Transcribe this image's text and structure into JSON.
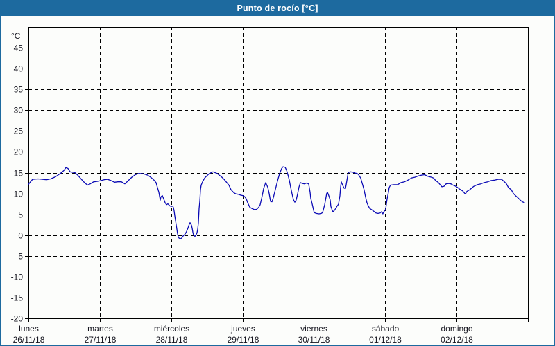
{
  "window": {
    "title": "Punto de rocío [°C]"
  },
  "colors": {
    "titlebar_bg": "#1d6a9f",
    "titlebar_text": "#ffffff",
    "outer_border": "#1d6a9f",
    "plot_background": "#fcfdfb",
    "grid": "#000000",
    "axis": "#000000",
    "tick_label": "#14141e",
    "line": "#0a0ab5"
  },
  "chart_data": {
    "type": "line",
    "title": "Punto de rocío [°C]",
    "y_unit_label": "°C",
    "ylim": [
      -20,
      50
    ],
    "yticks": [
      45,
      40,
      35,
      30,
      25,
      20,
      15,
      10,
      5,
      0,
      -5,
      -10,
      -15,
      -20
    ],
    "grid": "dashed",
    "legend_position": "none",
    "xlim_days": [
      0,
      7
    ],
    "x_days": [
      {
        "name": "lunes",
        "date": "26/11/18"
      },
      {
        "name": "martes",
        "date": "27/11/18"
      },
      {
        "name": "miércoles",
        "date": "28/11/18"
      },
      {
        "name": "jueves",
        "date": "29/11/18"
      },
      {
        "name": "viernes",
        "date": "30/11/18"
      },
      {
        "name": "sábado",
        "date": "01/12/18"
      },
      {
        "name": "domingo",
        "date": "02/12/18"
      }
    ],
    "series": [
      {
        "name": "Punto de rocío",
        "color": "#0a0ab5",
        "points": [
          [
            0.0,
            12.2
          ],
          [
            0.058,
            13.4
          ],
          [
            0.136,
            13.5
          ],
          [
            0.253,
            13.3
          ],
          [
            0.311,
            13.5
          ],
          [
            0.379,
            14.0
          ],
          [
            0.447,
            14.8
          ],
          [
            0.496,
            15.5
          ],
          [
            0.525,
            16.2
          ],
          [
            0.554,
            16.0
          ],
          [
            0.583,
            15.2
          ],
          [
            0.651,
            15.0
          ],
          [
            0.69,
            14.4
          ],
          [
            0.768,
            12.9
          ],
          [
            0.826,
            12.0
          ],
          [
            0.865,
            12.3
          ],
          [
            0.914,
            12.8
          ],
          [
            0.963,
            12.9
          ],
          [
            1.02,
            13.1
          ],
          [
            1.06,
            13.3
          ],
          [
            1.108,
            13.4
          ],
          [
            1.157,
            13.1
          ],
          [
            1.206,
            12.7
          ],
          [
            1.254,
            12.8
          ],
          [
            1.303,
            12.8
          ],
          [
            1.351,
            12.3
          ],
          [
            1.4,
            13.1
          ],
          [
            1.449,
            13.9
          ],
          [
            1.497,
            14.5
          ],
          [
            1.546,
            14.8
          ],
          [
            1.614,
            14.7
          ],
          [
            1.672,
            14.4
          ],
          [
            1.721,
            13.8
          ],
          [
            1.76,
            13.2
          ],
          [
            1.789,
            12.6
          ],
          [
            1.808,
            11.4
          ],
          [
            1.828,
            10.3
          ],
          [
            1.847,
            8.4
          ],
          [
            1.857,
            9.2
          ],
          [
            1.876,
            9.5
          ],
          [
            1.896,
            8.7
          ],
          [
            1.915,
            7.8
          ],
          [
            1.934,
            7.3
          ],
          [
            1.954,
            7.5
          ],
          [
            1.983,
            7.0
          ],
          [
            2.003,
            6.9
          ],
          [
            2.022,
            7.0
          ],
          [
            2.032,
            6.6
          ],
          [
            2.042,
            5.8
          ],
          [
            2.051,
            4.6
          ],
          [
            2.061,
            3.5
          ],
          [
            2.071,
            2.5
          ],
          [
            2.081,
            1.4
          ],
          [
            2.09,
            0.3
          ],
          [
            2.1,
            -0.4
          ],
          [
            2.11,
            -0.7
          ],
          [
            2.129,
            -0.9
          ],
          [
            2.149,
            -0.7
          ],
          [
            2.168,
            -0.2
          ],
          [
            2.197,
            0.3
          ],
          [
            2.217,
            0.9
          ],
          [
            2.236,
            1.7
          ],
          [
            2.256,
            2.7
          ],
          [
            2.265,
            3.0
          ],
          [
            2.285,
            2.4
          ],
          [
            2.295,
            1.6
          ],
          [
            2.304,
            0.7
          ],
          [
            2.314,
            0.0
          ],
          [
            2.333,
            -0.3
          ],
          [
            2.353,
            0.2
          ],
          [
            2.362,
            0.5
          ],
          [
            2.372,
            1.4
          ],
          [
            2.382,
            3.0
          ],
          [
            2.392,
            6.4
          ],
          [
            2.401,
            8.1
          ],
          [
            2.411,
            10.9
          ],
          [
            2.421,
            12.0
          ],
          [
            2.44,
            12.8
          ],
          [
            2.469,
            13.7
          ],
          [
            2.499,
            14.2
          ],
          [
            2.537,
            14.8
          ],
          [
            2.586,
            15.2
          ],
          [
            2.644,
            14.8
          ],
          [
            2.712,
            13.9
          ],
          [
            2.742,
            13.4
          ],
          [
            2.781,
            12.6
          ],
          [
            2.81,
            12.0
          ],
          [
            2.839,
            10.9
          ],
          [
            2.878,
            10.2
          ],
          [
            2.907,
            9.9
          ],
          [
            2.946,
            9.8
          ],
          [
            2.975,
            9.6
          ],
          [
            3.004,
            9.5
          ],
          [
            3.033,
            9.2
          ],
          [
            3.053,
            8.7
          ],
          [
            3.072,
            7.8
          ],
          [
            3.101,
            6.7
          ],
          [
            3.131,
            6.4
          ],
          [
            3.169,
            6.1
          ],
          [
            3.199,
            6.2
          ],
          [
            3.228,
            6.7
          ],
          [
            3.247,
            7.3
          ],
          [
            3.267,
            8.7
          ],
          [
            3.286,
            10.3
          ],
          [
            3.296,
            11.2
          ],
          [
            3.325,
            12.6
          ],
          [
            3.354,
            11.5
          ],
          [
            3.374,
            10.0
          ],
          [
            3.393,
            8.1
          ],
          [
            3.413,
            8.0
          ],
          [
            3.432,
            9.0
          ],
          [
            3.461,
            11.0
          ],
          [
            3.49,
            13.0
          ],
          [
            3.52,
            14.8
          ],
          [
            3.549,
            16.0
          ],
          [
            3.568,
            16.4
          ],
          [
            3.597,
            16.3
          ],
          [
            3.617,
            15.6
          ],
          [
            3.636,
            14.5
          ],
          [
            3.656,
            13.2
          ],
          [
            3.675,
            11.5
          ],
          [
            3.694,
            9.9
          ],
          [
            3.714,
            8.5
          ],
          [
            3.733,
            7.9
          ],
          [
            3.752,
            8.4
          ],
          [
            3.772,
            9.9
          ],
          [
            3.791,
            11.5
          ],
          [
            3.811,
            12.6
          ],
          [
            3.84,
            12.4
          ],
          [
            3.869,
            12.3
          ],
          [
            3.898,
            12.5
          ],
          [
            3.927,
            12.3
          ],
          [
            3.947,
            10.3
          ],
          [
            3.956,
            8.9
          ],
          [
            3.976,
            7.5
          ],
          [
            3.995,
            6.1
          ],
          [
            4.005,
            5.4
          ],
          [
            4.034,
            5.2
          ],
          [
            4.073,
            5.1
          ],
          [
            4.103,
            5.2
          ],
          [
            4.122,
            5.4
          ],
          [
            4.151,
            7.3
          ],
          [
            4.18,
            10.0
          ],
          [
            4.19,
            10.3
          ],
          [
            4.209,
            9.5
          ],
          [
            4.229,
            8.4
          ],
          [
            4.238,
            6.9
          ],
          [
            4.258,
            5.9
          ],
          [
            4.267,
            5.6
          ],
          [
            4.287,
            5.9
          ],
          [
            4.306,
            6.4
          ],
          [
            4.326,
            7.0
          ],
          [
            4.345,
            7.4
          ],
          [
            4.365,
            9.5
          ],
          [
            4.374,
            11.4
          ],
          [
            4.384,
            12.8
          ],
          [
            4.403,
            12.0
          ],
          [
            4.423,
            11.3
          ],
          [
            4.442,
            11.2
          ],
          [
            4.452,
            12.0
          ],
          [
            4.481,
            15.0
          ],
          [
            4.51,
            15.2
          ],
          [
            4.549,
            15.1
          ],
          [
            4.578,
            14.9
          ],
          [
            4.607,
            14.8
          ],
          [
            4.627,
            14.5
          ],
          [
            4.656,
            13.7
          ],
          [
            4.685,
            12.0
          ],
          [
            4.704,
            10.9
          ],
          [
            4.724,
            9.2
          ],
          [
            4.743,
            7.8
          ],
          [
            4.763,
            7.0
          ],
          [
            4.782,
            6.4
          ],
          [
            4.811,
            6.1
          ],
          [
            4.841,
            5.7
          ],
          [
            4.87,
            5.3
          ],
          [
            4.899,
            5.2
          ],
          [
            4.928,
            5.3
          ],
          [
            4.948,
            5.6
          ],
          [
            4.967,
            5.1
          ],
          [
            4.977,
            5.5
          ],
          [
            5.006,
            6.2
          ],
          [
            5.026,
            8.7
          ],
          [
            5.045,
            10.3
          ],
          [
            5.055,
            11.4
          ],
          [
            5.074,
            12.0
          ],
          [
            5.123,
            12.1
          ],
          [
            5.172,
            12.1
          ],
          [
            5.22,
            12.6
          ],
          [
            5.269,
            12.8
          ],
          [
            5.318,
            13.2
          ],
          [
            5.366,
            13.7
          ],
          [
            5.415,
            13.9
          ],
          [
            5.464,
            14.2
          ],
          [
            5.512,
            14.4
          ],
          [
            5.551,
            14.5
          ],
          [
            5.6,
            14.1
          ],
          [
            5.648,
            13.9
          ],
          [
            5.678,
            13.7
          ],
          [
            5.707,
            13.1
          ],
          [
            5.746,
            12.6
          ],
          [
            5.775,
            12.0
          ],
          [
            5.794,
            11.6
          ],
          [
            5.823,
            11.7
          ],
          [
            5.853,
            12.3
          ],
          [
            5.892,
            12.4
          ],
          [
            5.921,
            12.3
          ],
          [
            5.95,
            12.0
          ],
          [
            5.979,
            11.8
          ],
          [
            6.018,
            11.4
          ],
          [
            6.047,
            11.0
          ],
          [
            6.086,
            10.6
          ],
          [
            6.115,
            10.0
          ],
          [
            6.125,
            9.9
          ],
          [
            6.144,
            10.5
          ],
          [
            6.183,
            10.9
          ],
          [
            6.212,
            11.3
          ],
          [
            6.241,
            11.7
          ],
          [
            6.29,
            12.1
          ],
          [
            6.339,
            12.3
          ],
          [
            6.387,
            12.6
          ],
          [
            6.436,
            12.8
          ],
          [
            6.485,
            13.1
          ],
          [
            6.533,
            13.2
          ],
          [
            6.582,
            13.4
          ],
          [
            6.631,
            13.4
          ],
          [
            6.67,
            12.8
          ],
          [
            6.699,
            12.3
          ],
          [
            6.728,
            11.4
          ],
          [
            6.767,
            10.9
          ],
          [
            6.796,
            10.0
          ],
          [
            6.825,
            9.5
          ],
          [
            6.864,
            8.9
          ],
          [
            6.893,
            8.4
          ],
          [
            6.922,
            8.0
          ],
          [
            6.951,
            7.8
          ]
        ]
      }
    ]
  }
}
